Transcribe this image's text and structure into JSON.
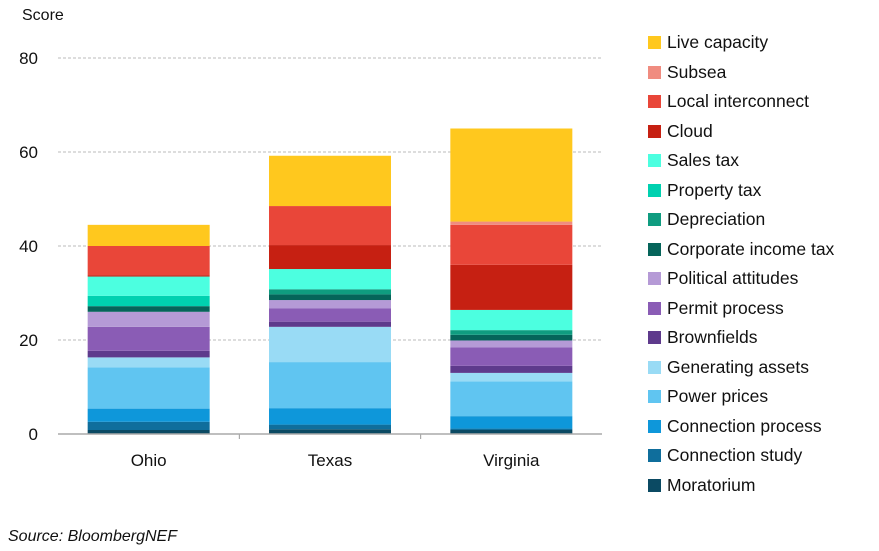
{
  "chart_data": {
    "type": "bar",
    "stacked": true,
    "ylabel": "Score",
    "ylim": [
      0,
      80
    ],
    "yticks": [
      0,
      20,
      40,
      60,
      80
    ],
    "grid": true,
    "legend_position": "right",
    "categories": [
      "Ohio",
      "Texas",
      "Virginia"
    ],
    "series": [
      {
        "name": "Moratorium",
        "color": "#0B4A63",
        "values": [
          0.85,
          1.0,
          0.85
        ]
      },
      {
        "name": "Connection study",
        "color": "#0F6E9C",
        "values": [
          1.75,
          1.0,
          0.3
        ]
      },
      {
        "name": "Connection process",
        "color": "#0E97DA",
        "values": [
          2.8,
          3.5,
          2.65
        ]
      },
      {
        "name": "Power prices",
        "color": "#60C5F1",
        "values": [
          8.8,
          9.8,
          7.4
        ]
      },
      {
        "name": "Generating assets",
        "color": "#99DBF5",
        "values": [
          2.1,
          7.5,
          1.8
        ]
      },
      {
        "name": "Brownfields",
        "color": "#5E3A8C",
        "values": [
          1.4,
          1.1,
          1.5
        ]
      },
      {
        "name": "Permit process",
        "color": "#8A5CB5",
        "values": [
          5.1,
          2.8,
          3.9
        ]
      },
      {
        "name": "Political attitudes",
        "color": "#B59AD6",
        "values": [
          3.2,
          1.8,
          1.5
        ]
      },
      {
        "name": "Corporate income tax",
        "color": "#05645A",
        "values": [
          1.2,
          1.2,
          1.2
        ]
      },
      {
        "name": "Depreciation",
        "color": "#0F9C80",
        "values": [
          0,
          1.1,
          1.0
        ]
      },
      {
        "name": "Property tax",
        "color": "#00D1B0",
        "values": [
          2.2,
          0,
          0
        ]
      },
      {
        "name": "Sales tax",
        "color": "#4CFFE0",
        "values": [
          4.1,
          4.3,
          4.3
        ]
      },
      {
        "name": "Cloud",
        "color": "#C62012",
        "values": [
          0.3,
          5.1,
          9.6
        ]
      },
      {
        "name": "Local interconnect",
        "color": "#E94639",
        "values": [
          6.2,
          8.3,
          8.5
        ]
      },
      {
        "name": "Subsea",
        "color": "#F08C80",
        "values": [
          0,
          0,
          0.7
        ]
      },
      {
        "name": "Live capacity",
        "color": "#FFC81E",
        "values": [
          4.5,
          10.7,
          19.8
        ]
      }
    ]
  },
  "source": "Source: BloombergNEF"
}
